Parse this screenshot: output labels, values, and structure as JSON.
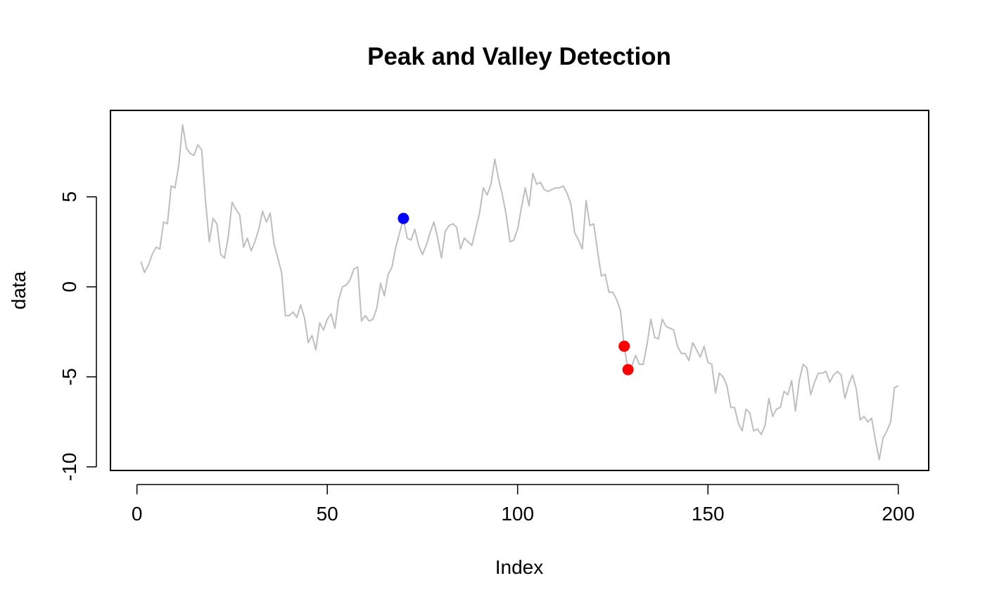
{
  "chart_data": {
    "type": "line",
    "title": "Peak and Valley Detection",
    "xlabel": "Index",
    "ylabel": "data",
    "xlim": [
      -6.96,
      208
    ],
    "ylim": [
      -10.2,
      9.8
    ],
    "x_ticks": [
      0,
      50,
      100,
      150,
      200
    ],
    "x_tick_labels": [
      "0",
      "50",
      "100",
      "150",
      "200"
    ],
    "y_ticks": [
      -10,
      -5,
      0,
      5
    ],
    "y_tick_labels": [
      "-10",
      "-5",
      "0",
      "5"
    ],
    "grid": false,
    "legend": "none",
    "colors": {
      "line": "#bebebe",
      "peak": "#0000ff",
      "valley": "#ff0000",
      "axes": "#000000"
    },
    "series": [
      {
        "x_start": 1,
        "values": [
          1.4,
          0.8,
          1.2,
          1.8,
          2.2,
          2.1,
          3.6,
          3.5,
          5.6,
          5.5,
          6.8,
          9.0,
          7.7,
          7.4,
          7.3,
          7.9,
          7.6,
          4.8,
          2.5,
          3.8,
          3.5,
          1.8,
          1.6,
          2.8,
          4.7,
          4.3,
          4.0,
          2.2,
          2.7,
          2.0,
          2.5,
          3.2,
          4.2,
          3.6,
          4.1,
          2.4,
          1.6,
          0.8,
          -1.6,
          -1.6,
          -1.4,
          -1.7,
          -1.0,
          -1.7,
          -3.1,
          -2.7,
          -3.5,
          -2.0,
          -2.4,
          -1.8,
          -1.5,
          -2.3,
          -0.7,
          0.0,
          0.1,
          0.4,
          1.0,
          1.1,
          -1.9,
          -1.6,
          -1.9,
          -1.8,
          -1.2,
          0.2,
          -0.5,
          0.7,
          1.1,
          2.2,
          3.0,
          3.8,
          2.7,
          2.6,
          3.2,
          2.3,
          1.8,
          2.3,
          3.0,
          3.6,
          2.7,
          1.6,
          3.1,
          3.4,
          3.5,
          3.3,
          2.1,
          2.7,
          2.5,
          2.3,
          3.2,
          4.1,
          5.5,
          5.1,
          5.7,
          7.1,
          6.0,
          5.1,
          4.0,
          2.5,
          2.6,
          3.2,
          4.4,
          5.5,
          4.5,
          6.3,
          5.7,
          5.8,
          5.4,
          5.3,
          5.4,
          5.5,
          5.5,
          5.6,
          5.2,
          4.6,
          3.0,
          2.6,
          2.1,
          4.8,
          3.4,
          3.5,
          2.0,
          0.6,
          0.7,
          -0.3,
          -0.3,
          -0.7,
          -1.3,
          -3.3,
          -4.6,
          -4.4,
          -3.8,
          -4.3,
          -4.3,
          -3.2,
          -1.8,
          -2.8,
          -2.9,
          -1.8,
          -2.2,
          -2.3,
          -2.4,
          -3.3,
          -3.7,
          -3.7,
          -4.1,
          -3.1,
          -3.5,
          -3.9,
          -3.3,
          -4.2,
          -4.3,
          -5.9,
          -4.8,
          -5.0,
          -5.5,
          -6.7,
          -6.7,
          -7.6,
          -8.0,
          -6.8,
          -7.0,
          -8.0,
          -7.9,
          -8.2,
          -7.7,
          -6.2,
          -7.2,
          -6.8,
          -6.7,
          -5.8,
          -6.0,
          -5.2,
          -6.9,
          -5.2,
          -4.3,
          -4.5,
          -6.0,
          -5.3,
          -4.8,
          -4.8,
          -4.7,
          -5.3,
          -4.9,
          -4.7,
          -4.9,
          -6.2,
          -5.4,
          -4.9,
          -5.7,
          -7.4,
          -7.2,
          -7.5,
          -7.3,
          -8.5,
          -9.6,
          -8.4,
          -8.0,
          -7.5,
          -5.6,
          -5.5
        ]
      }
    ],
    "peaks": [
      {
        "x": 70,
        "y": 3.8
      }
    ],
    "valleys": [
      {
        "x": 128,
        "y": -3.3
      },
      {
        "x": 129,
        "y": -4.6
      }
    ]
  }
}
